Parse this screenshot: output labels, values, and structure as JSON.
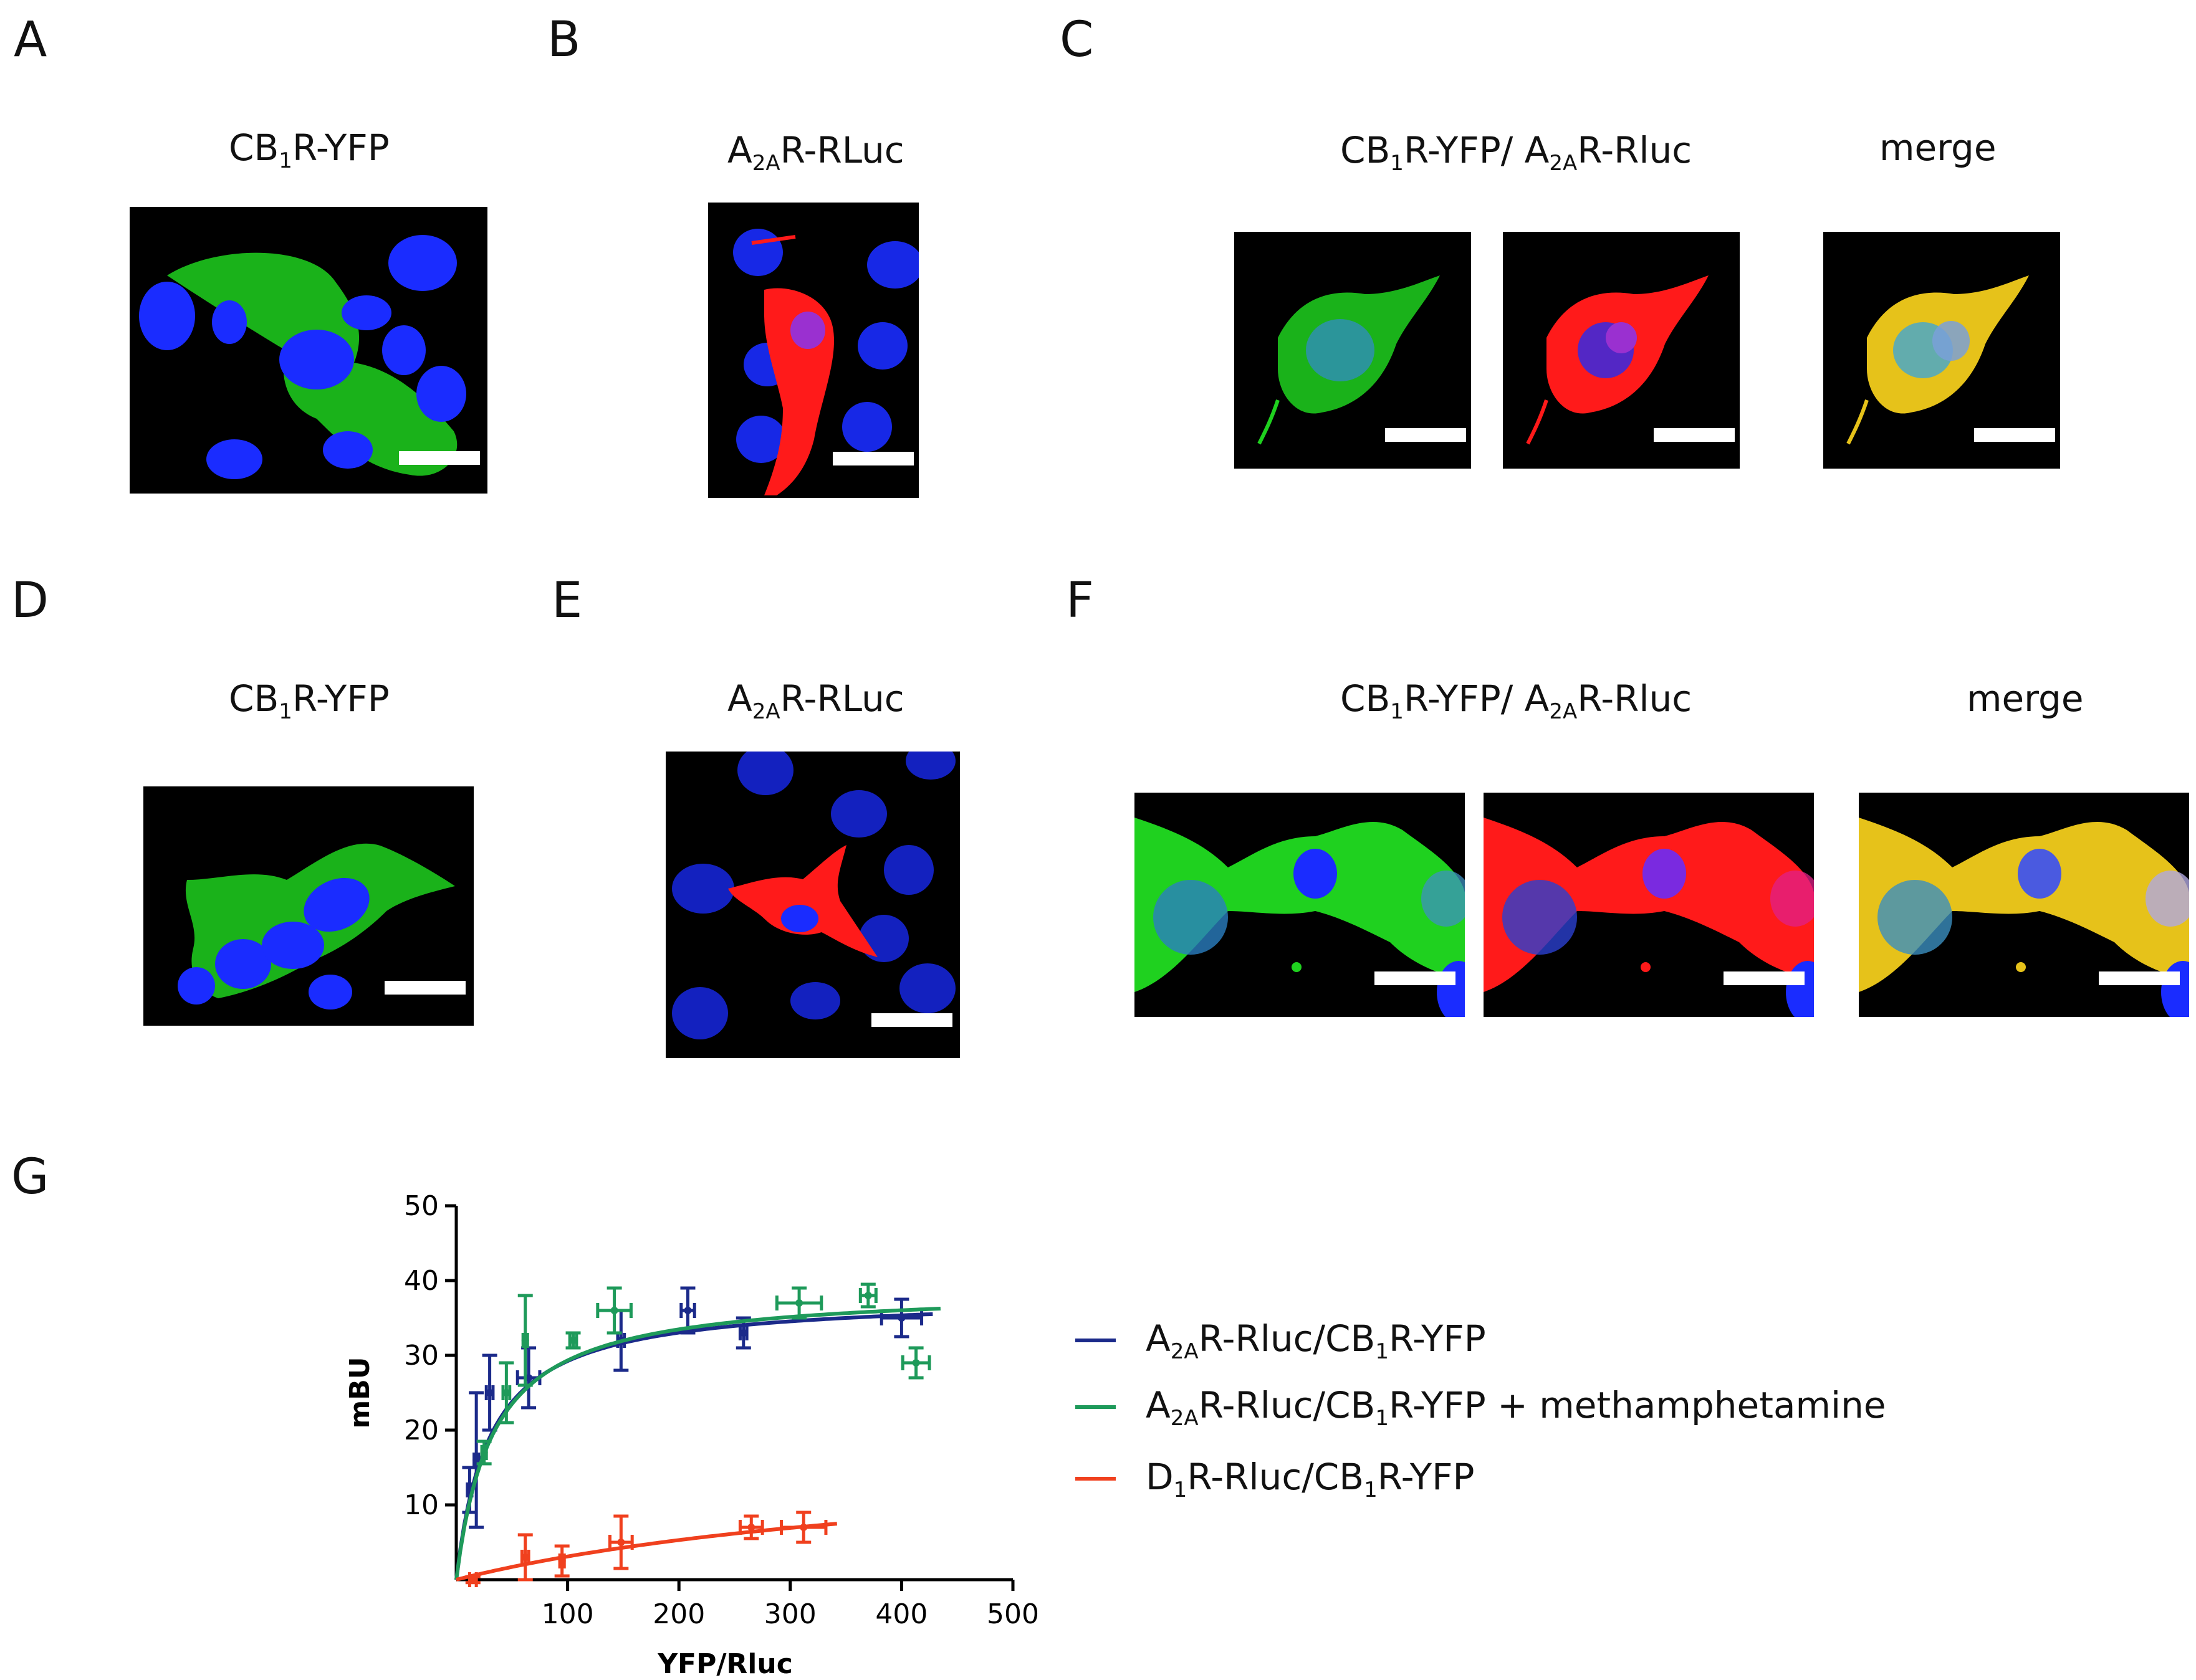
{
  "panels": {
    "A": {
      "letter": "A",
      "caption": [
        "CB",
        "1",
        "R-YFP"
      ]
    },
    "B": {
      "letter": "B",
      "caption": [
        "A",
        "2A",
        "R-RLuc"
      ]
    },
    "C": {
      "letter": "C",
      "caption": [
        "CB",
        "1",
        "R-YFP/ A",
        "2A",
        "R-Rluc"
      ],
      "merge": "merge"
    },
    "D": {
      "letter": "D",
      "caption": [
        "CB",
        "1",
        "R-YFP"
      ]
    },
    "E": {
      "letter": "E",
      "caption": [
        "A",
        "2A",
        "R-RLuc"
      ]
    },
    "F": {
      "letter": "F",
      "caption": [
        "CB",
        "1",
        "R-YFP/ A",
        "2A",
        "R-Rluc"
      ],
      "merge": "merge"
    },
    "G": {
      "letter": "G"
    }
  },
  "colors": {
    "green": "#1fd11f",
    "red": "#ff1a1a",
    "blue": "#1a2cff",
    "merge_yellow": "#e6c21a",
    "series_blue": "#1b2a8a",
    "series_green": "#1e9a5a",
    "series_red": "#f0401e"
  },
  "chart_data": {
    "type": "scatter",
    "xlabel": "YFP/Rluc",
    "ylabel": "mBU",
    "xlim": [
      0,
      500
    ],
    "ylim": [
      0,
      50
    ],
    "xticks": [
      100,
      200,
      300,
      400,
      500
    ],
    "yticks": [
      10,
      20,
      30,
      40,
      50
    ],
    "legend_position": "right",
    "series": [
      {
        "name_parts": [
          "A",
          "2A",
          "R-Rluc/CB",
          "1",
          "R-YFP"
        ],
        "color": "#1b2a8a",
        "fit": {
          "model": "hyperbola",
          "bmax": 38,
          "kd": 30
        },
        "points": [
          {
            "x": 12,
            "y": 12,
            "yerr": 3,
            "xerr": 2
          },
          {
            "x": 18,
            "y": 16,
            "yerr": 9,
            "xerr": 2
          },
          {
            "x": 30,
            "y": 25,
            "yerr": 5,
            "xerr": 3
          },
          {
            "x": 65,
            "y": 27,
            "yerr": 4,
            "xerr": 10
          },
          {
            "x": 148,
            "y": 32,
            "yerr": 4,
            "xerr": 3
          },
          {
            "x": 208,
            "y": 36,
            "yerr": 3,
            "xerr": 6
          },
          {
            "x": 258,
            "y": 33,
            "yerr": 2,
            "xerr": 3
          },
          {
            "x": 400,
            "y": 35,
            "yerr": 2.5,
            "xerr": 18
          }
        ]
      },
      {
        "name_parts": [
          "A",
          "2A",
          "R-Rluc/CB",
          "1",
          "R-YFP + methamphetamine"
        ],
        "color": "#1e9a5a",
        "fit": {
          "model": "hyperbola",
          "bmax": 39,
          "kd": 33
        },
        "points": [
          {
            "x": 25,
            "y": 17,
            "yerr": 1.5,
            "xerr": 2
          },
          {
            "x": 45,
            "y": 25,
            "yerr": 4,
            "xerr": 3
          },
          {
            "x": 62,
            "y": 32,
            "yerr": 6,
            "xerr": 2
          },
          {
            "x": 105,
            "y": 32,
            "yerr": 1,
            "xerr": 3
          },
          {
            "x": 142,
            "y": 36,
            "yerr": 3,
            "xerr": 15
          },
          {
            "x": 308,
            "y": 37,
            "yerr": 2,
            "xerr": 20
          },
          {
            "x": 370,
            "y": 38,
            "yerr": 1.5,
            "xerr": 7
          },
          {
            "x": 413,
            "y": 29,
            "yerr": 2,
            "xerr": 12
          }
        ]
      },
      {
        "name_parts": [
          "D",
          "1",
          "R-Rluc/CB",
          "1",
          "R-YFP"
        ],
        "color": "#f0401e",
        "fit": {
          "model": "linear-ish",
          "bmax": 18,
          "kd": 480
        },
        "points": [
          {
            "x": 15,
            "y": 0,
            "yerr": 0.4,
            "xerr": 3
          },
          {
            "x": 62,
            "y": 3,
            "yerr": 3,
            "xerr": 3
          },
          {
            "x": 95,
            "y": 2.5,
            "yerr": 2,
            "xerr": 2
          },
          {
            "x": 148,
            "y": 5,
            "yerr": 3.5,
            "xerr": 10
          },
          {
            "x": 265,
            "y": 7,
            "yerr": 1.5,
            "xerr": 10
          },
          {
            "x": 312,
            "y": 7,
            "yerr": 2,
            "xerr": 20
          }
        ]
      }
    ]
  }
}
